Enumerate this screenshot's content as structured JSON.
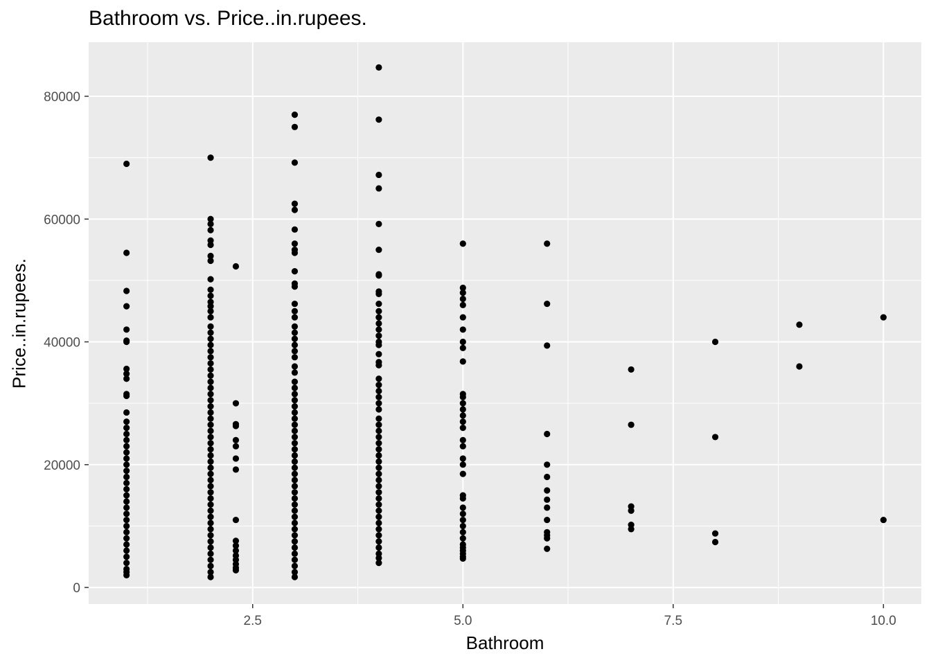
{
  "chart_data": {
    "type": "scatter",
    "title": "Bathroom vs. Price..in.rupees.",
    "xlabel": "Bathroom",
    "ylabel": "Price..in.rupees.",
    "xlim": [
      0.55,
      10.45
    ],
    "ylim": [
      -2700,
      88800
    ],
    "x_ticks": [
      2.5,
      5.0,
      7.5,
      10.0
    ],
    "x_tick_labels": [
      "2.5",
      "5.0",
      "7.5",
      "10.0"
    ],
    "y_ticks": [
      0,
      20000,
      40000,
      60000,
      80000
    ],
    "y_tick_labels": [
      "0",
      "20000",
      "40000",
      "60000",
      "80000"
    ],
    "grid": true,
    "background": "#ebebeb",
    "grid_color": "#ffffff",
    "point_color": "#000000",
    "series": [
      {
        "values": [
          [
            1,
            69000
          ],
          [
            1,
            54500
          ],
          [
            1,
            48300
          ],
          [
            1,
            45800
          ],
          [
            1,
            42000
          ],
          [
            1,
            40200
          ],
          [
            1,
            40000
          ],
          [
            1,
            35600
          ],
          [
            1,
            34800
          ],
          [
            1,
            34000
          ],
          [
            1,
            31500
          ],
          [
            1,
            31200
          ],
          [
            1,
            28500
          ],
          [
            1,
            27000
          ],
          [
            1,
            26000
          ],
          [
            1,
            25000
          ],
          [
            1,
            24000
          ],
          [
            1,
            23000
          ],
          [
            1,
            22000
          ],
          [
            1,
            21000
          ],
          [
            1,
            20000
          ],
          [
            1,
            19000
          ],
          [
            1,
            18000
          ],
          [
            1,
            17000
          ],
          [
            1,
            16000
          ],
          [
            1,
            15000
          ],
          [
            1,
            14000
          ],
          [
            1,
            13000
          ],
          [
            1,
            12000
          ],
          [
            1,
            11000
          ],
          [
            1,
            10000
          ],
          [
            1,
            9000
          ],
          [
            1,
            8000
          ],
          [
            1,
            7000
          ],
          [
            1,
            6000
          ],
          [
            1,
            5000
          ],
          [
            1,
            4000
          ],
          [
            1,
            3000
          ],
          [
            1,
            2500
          ],
          [
            1,
            2000
          ],
          [
            2,
            70000
          ],
          [
            2,
            60000
          ],
          [
            2,
            59200
          ],
          [
            2,
            58200
          ],
          [
            2,
            56500
          ],
          [
            2,
            55800
          ],
          [
            2,
            54000
          ],
          [
            2,
            53200
          ],
          [
            2,
            50200
          ],
          [
            2,
            48500
          ],
          [
            2,
            47500
          ],
          [
            2,
            46500
          ],
          [
            2,
            45800
          ],
          [
            2,
            45000
          ],
          [
            2,
            44000
          ],
          [
            2,
            42500
          ],
          [
            2,
            41500
          ],
          [
            2,
            40500
          ],
          [
            2,
            39500
          ],
          [
            2,
            38500
          ],
          [
            2,
            37500
          ],
          [
            2,
            36500
          ],
          [
            2,
            35500
          ],
          [
            2,
            34500
          ],
          [
            2,
            33500
          ],
          [
            2,
            32500
          ],
          [
            2,
            31500
          ],
          [
            2,
            30500
          ],
          [
            2,
            29500
          ],
          [
            2,
            28500
          ],
          [
            2,
            27500
          ],
          [
            2,
            26500
          ],
          [
            2,
            25500
          ],
          [
            2,
            24500
          ],
          [
            2,
            23500
          ],
          [
            2,
            22500
          ],
          [
            2,
            21500
          ],
          [
            2,
            20500
          ],
          [
            2,
            19500
          ],
          [
            2,
            18500
          ],
          [
            2,
            17500
          ],
          [
            2,
            16500
          ],
          [
            2,
            15500
          ],
          [
            2,
            14500
          ],
          [
            2,
            13500
          ],
          [
            2,
            12500
          ],
          [
            2,
            11500
          ],
          [
            2,
            10500
          ],
          [
            2,
            9500
          ],
          [
            2,
            8500
          ],
          [
            2,
            7500
          ],
          [
            2,
            6500
          ],
          [
            2,
            5500
          ],
          [
            2,
            4500
          ],
          [
            2,
            3500
          ],
          [
            2,
            2500
          ],
          [
            2,
            1700
          ],
          [
            2.3,
            52300
          ],
          [
            2.3,
            30000
          ],
          [
            2.3,
            26600
          ],
          [
            2.3,
            26300
          ],
          [
            2.3,
            24000
          ],
          [
            2.3,
            23000
          ],
          [
            2.3,
            21000
          ],
          [
            2.3,
            19200
          ],
          [
            2.3,
            11000
          ],
          [
            2.3,
            7600
          ],
          [
            2.3,
            6800
          ],
          [
            2.3,
            6000
          ],
          [
            2.3,
            5200
          ],
          [
            2.3,
            4500
          ],
          [
            2.3,
            3800
          ],
          [
            2.3,
            3200
          ],
          [
            2.3,
            2800
          ],
          [
            3,
            77000
          ],
          [
            3,
            75000
          ],
          [
            3,
            69200
          ],
          [
            3,
            62500
          ],
          [
            3,
            61500
          ],
          [
            3,
            58300
          ],
          [
            3,
            56000
          ],
          [
            3,
            55000
          ],
          [
            3,
            54500
          ],
          [
            3,
            51500
          ],
          [
            3,
            49500
          ],
          [
            3,
            49000
          ],
          [
            3,
            46200
          ],
          [
            3,
            45000
          ],
          [
            3,
            44000
          ],
          [
            3,
            42500
          ],
          [
            3,
            41500
          ],
          [
            3,
            40500
          ],
          [
            3,
            39500
          ],
          [
            3,
            38500
          ],
          [
            3,
            37500
          ],
          [
            3,
            36000
          ],
          [
            3,
            35000
          ],
          [
            3,
            33500
          ],
          [
            3,
            32500
          ],
          [
            3,
            31500
          ],
          [
            3,
            30500
          ],
          [
            3,
            29500
          ],
          [
            3,
            28500
          ],
          [
            3,
            27500
          ],
          [
            3,
            26500
          ],
          [
            3,
            25500
          ],
          [
            3,
            24500
          ],
          [
            3,
            23500
          ],
          [
            3,
            22500
          ],
          [
            3,
            21500
          ],
          [
            3,
            20500
          ],
          [
            3,
            19500
          ],
          [
            3,
            18500
          ],
          [
            3,
            17500
          ],
          [
            3,
            16500
          ],
          [
            3,
            15500
          ],
          [
            3,
            14500
          ],
          [
            3,
            13500
          ],
          [
            3,
            12500
          ],
          [
            3,
            11500
          ],
          [
            3,
            10500
          ],
          [
            3,
            9500
          ],
          [
            3,
            8500
          ],
          [
            3,
            7500
          ],
          [
            3,
            6500
          ],
          [
            3,
            5500
          ],
          [
            3,
            4500
          ],
          [
            3,
            3500
          ],
          [
            3,
            2500
          ],
          [
            3,
            1700
          ],
          [
            4,
            84700
          ],
          [
            4,
            76200
          ],
          [
            4,
            67200
          ],
          [
            4,
            65000
          ],
          [
            4,
            59200
          ],
          [
            4,
            55000
          ],
          [
            4,
            51000
          ],
          [
            4,
            50800
          ],
          [
            4,
            48200
          ],
          [
            4,
            47800
          ],
          [
            4,
            46200
          ],
          [
            4,
            45000
          ],
          [
            4,
            44000
          ],
          [
            4,
            43000
          ],
          [
            4,
            42000
          ],
          [
            4,
            41000
          ],
          [
            4,
            40000
          ],
          [
            4,
            39500
          ],
          [
            4,
            38000
          ],
          [
            4,
            36700
          ],
          [
            4,
            36200
          ],
          [
            4,
            34000
          ],
          [
            4,
            33000
          ],
          [
            4,
            32000
          ],
          [
            4,
            31000
          ],
          [
            4,
            30000
          ],
          [
            4,
            29000
          ],
          [
            4,
            27500
          ],
          [
            4,
            26500
          ],
          [
            4,
            25500
          ],
          [
            4,
            24500
          ],
          [
            4,
            23500
          ],
          [
            4,
            22500
          ],
          [
            4,
            21500
          ],
          [
            4,
            20500
          ],
          [
            4,
            19500
          ],
          [
            4,
            18500
          ],
          [
            4,
            17500
          ],
          [
            4,
            16500
          ],
          [
            4,
            15500
          ],
          [
            4,
            14500
          ],
          [
            4,
            13500
          ],
          [
            4,
            12500
          ],
          [
            4,
            11500
          ],
          [
            4,
            10500
          ],
          [
            4,
            9500
          ],
          [
            4,
            8500
          ],
          [
            4,
            7500
          ],
          [
            4,
            6500
          ],
          [
            4,
            5500
          ],
          [
            4,
            4800
          ],
          [
            4,
            4000
          ],
          [
            5,
            56000
          ],
          [
            5,
            48800
          ],
          [
            5,
            48000
          ],
          [
            5,
            47000
          ],
          [
            5,
            46000
          ],
          [
            5,
            44000
          ],
          [
            5,
            42000
          ],
          [
            5,
            40000
          ],
          [
            5,
            39000
          ],
          [
            5,
            36800
          ],
          [
            5,
            31500
          ],
          [
            5,
            31000
          ],
          [
            5,
            30000
          ],
          [
            5,
            29000
          ],
          [
            5,
            28000
          ],
          [
            5,
            27000
          ],
          [
            5,
            26000
          ],
          [
            5,
            24000
          ],
          [
            5,
            23000
          ],
          [
            5,
            21000
          ],
          [
            5,
            20000
          ],
          [
            5,
            18500
          ],
          [
            5,
            15000
          ],
          [
            5,
            14500
          ],
          [
            5,
            13000
          ],
          [
            5,
            12000
          ],
          [
            5,
            11000
          ],
          [
            5,
            10000
          ],
          [
            5,
            9000
          ],
          [
            5,
            8000
          ],
          [
            5,
            7000
          ],
          [
            5,
            6500
          ],
          [
            5,
            6000
          ],
          [
            5,
            5500
          ],
          [
            5,
            5000
          ],
          [
            5,
            4700
          ],
          [
            6,
            56000
          ],
          [
            6,
            46200
          ],
          [
            6,
            39400
          ],
          [
            6,
            25000
          ],
          [
            6,
            20000
          ],
          [
            6,
            18000
          ],
          [
            6,
            15800
          ],
          [
            6,
            14300
          ],
          [
            6,
            13000
          ],
          [
            6,
            11000
          ],
          [
            6,
            9000
          ],
          [
            6,
            8500
          ],
          [
            6,
            8000
          ],
          [
            6,
            6300
          ],
          [
            7,
            35500
          ],
          [
            7,
            26500
          ],
          [
            7,
            13200
          ],
          [
            7,
            12500
          ],
          [
            7,
            10200
          ],
          [
            7,
            9500
          ],
          [
            8,
            40000
          ],
          [
            8,
            24500
          ],
          [
            8,
            8800
          ],
          [
            8,
            7400
          ],
          [
            9,
            42800
          ],
          [
            9,
            36000
          ],
          [
            10,
            44000
          ],
          [
            10,
            11000
          ]
        ]
      }
    ]
  }
}
